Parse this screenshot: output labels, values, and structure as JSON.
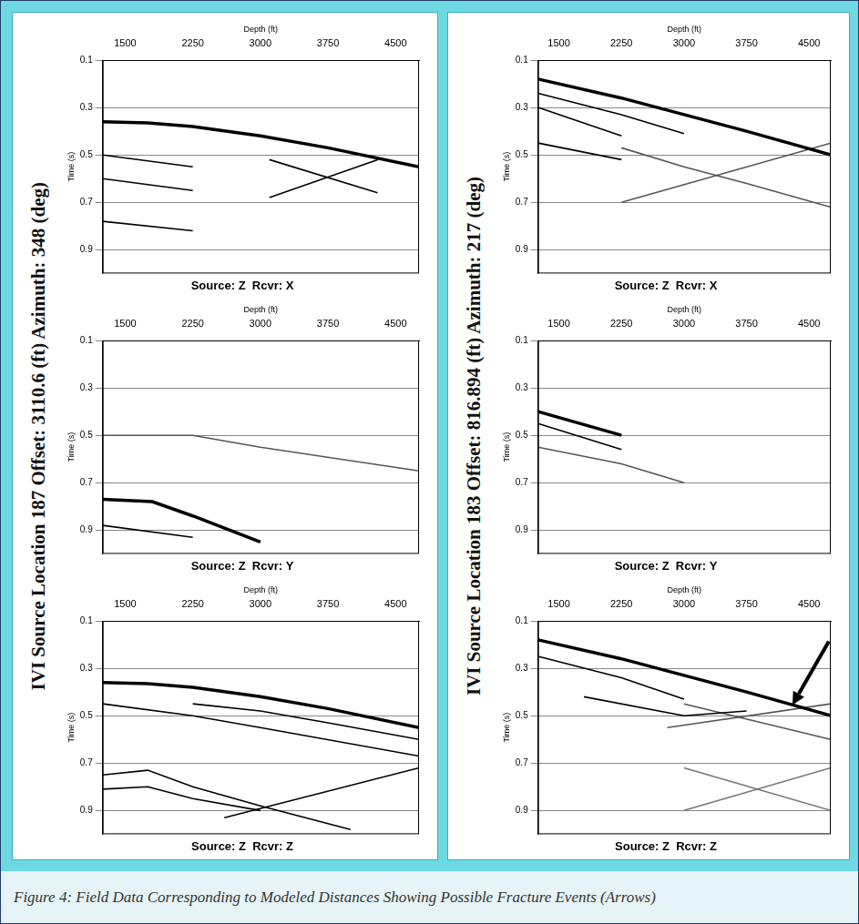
{
  "caption": "Figure 4: Field Data Corresponding to Modeled Distances Showing Possible Fracture Events (Arrows)",
  "panel_titles": [
    "IVI Source Location 187 Offset: 3110.6 (ft) Azimuth: 348 (deg)",
    "IVI Source Location 183 Offset: 816.894 (ft) Azimuth: 217 (deg)"
  ],
  "chart_data": [
    {
      "type": "line",
      "title": "Source: Z  Rcvr: X",
      "x_label": "Depth (ft)",
      "y_label": "Time (s)",
      "xlim": [
        1250,
        4760
      ],
      "xticks": [
        1500,
        2250,
        3000,
        3750,
        4500
      ],
      "ylim": [
        0.1,
        1.0
      ],
      "yticks": [
        0.1,
        0.3,
        0.5,
        0.7,
        0.9
      ],
      "grid": "y",
      "series": [
        {
          "color": "#000000",
          "line_style": "solid",
          "x": [
            1250,
            1750,
            2250,
            3000,
            3750,
            4760
          ],
          "values": [
            0.36,
            0.365,
            0.38,
            0.42,
            0.47,
            0.55
          ]
        },
        {
          "color": "#000000",
          "line_style": "solid",
          "x": [
            3100,
            4300
          ],
          "values": [
            0.68,
            0.52
          ]
        },
        {
          "color": "#000000",
          "line_style": "solid",
          "x": [
            3100,
            4300
          ],
          "values": [
            0.52,
            0.66
          ]
        },
        {
          "color": "#000000",
          "line_style": "solid",
          "x": [
            1250,
            2250
          ],
          "values": [
            0.5,
            0.55
          ]
        },
        {
          "color": "#000000",
          "line_style": "solid",
          "x": [
            1250,
            2250
          ],
          "values": [
            0.6,
            0.65
          ]
        },
        {
          "color": "#000000",
          "line_style": "solid",
          "x": [
            1250,
            2250
          ],
          "values": [
            0.78,
            0.82
          ]
        }
      ]
    },
    {
      "type": "line",
      "title": "Source: Z  Rcvr: Y",
      "x_label": "Depth (ft)",
      "y_label": "Time (s)",
      "xlim": [
        1250,
        4760
      ],
      "xticks": [
        1500,
        2250,
        3000,
        3750,
        4500
      ],
      "ylim": [
        0.1,
        1.0
      ],
      "yticks": [
        0.1,
        0.3,
        0.5,
        0.7,
        0.9
      ],
      "grid": "y",
      "series": [
        {
          "color": "#000000",
          "line_style": "solid",
          "x": [
            1250,
            1800,
            2250,
            3000
          ],
          "values": [
            0.77,
            0.78,
            0.84,
            0.95
          ]
        },
        {
          "color": "#555555",
          "line_style": "solid",
          "x": [
            1250,
            2250,
            3000,
            4760
          ],
          "values": [
            0.5,
            0.5,
            0.55,
            0.65
          ]
        },
        {
          "color": "#000000",
          "line_style": "solid",
          "x": [
            1250,
            2250
          ],
          "values": [
            0.88,
            0.93
          ]
        }
      ]
    },
    {
      "type": "line",
      "title": "Source: Z  Rcvr: Z",
      "x_label": "Depth (ft)",
      "y_label": "Time (s)",
      "xlim": [
        1250,
        4760
      ],
      "xticks": [
        1500,
        2250,
        3000,
        3750,
        4500
      ],
      "ylim": [
        0.1,
        1.0
      ],
      "yticks": [
        0.1,
        0.3,
        0.5,
        0.7,
        0.9
      ],
      "grid": "y",
      "series": [
        {
          "color": "#000000",
          "line_style": "solid",
          "x": [
            1250,
            1750,
            2250,
            3000,
            3750,
            4760
          ],
          "values": [
            0.36,
            0.365,
            0.38,
            0.42,
            0.47,
            0.55
          ]
        },
        {
          "color": "#000000",
          "line_style": "solid",
          "x": [
            2250,
            3000,
            3750,
            4760
          ],
          "values": [
            0.45,
            0.48,
            0.53,
            0.6
          ]
        },
        {
          "color": "#000000",
          "line_style": "solid",
          "x": [
            1250,
            2250,
            3000,
            4760
          ],
          "values": [
            0.45,
            0.5,
            0.55,
            0.67
          ]
        },
        {
          "color": "#000000",
          "line_style": "solid",
          "x": [
            1250,
            1750,
            2250,
            3000,
            4000
          ],
          "values": [
            0.75,
            0.73,
            0.8,
            0.88,
            0.98
          ]
        },
        {
          "color": "#000000",
          "line_style": "solid",
          "x": [
            1250,
            1750,
            2250,
            3000
          ],
          "values": [
            0.81,
            0.8,
            0.85,
            0.9
          ]
        },
        {
          "color": "#000000",
          "line_style": "solid",
          "x": [
            2600,
            4760
          ],
          "values": [
            0.93,
            0.72
          ]
        }
      ]
    },
    {
      "type": "line",
      "title": "Source: Z  Rcvr: X",
      "x_label": "Depth (ft)",
      "y_label": "Time (s)",
      "xlim": [
        1250,
        4760
      ],
      "xticks": [
        1500,
        2250,
        3000,
        3750,
        4500
      ],
      "ylim": [
        0.1,
        1.0
      ],
      "yticks": [
        0.1,
        0.3,
        0.5,
        0.7,
        0.9
      ],
      "grid": "y",
      "series": [
        {
          "color": "#000000",
          "line_style": "solid",
          "x": [
            1250,
            2250,
            3000,
            3750,
            4760
          ],
          "values": [
            0.18,
            0.26,
            0.33,
            0.4,
            0.5
          ]
        },
        {
          "color": "#000000",
          "line_style": "solid",
          "x": [
            1250,
            2250,
            3000
          ],
          "values": [
            0.24,
            0.33,
            0.41
          ]
        },
        {
          "color": "#000000",
          "line_style": "solid",
          "x": [
            1250,
            2250
          ],
          "values": [
            0.3,
            0.42
          ]
        },
        {
          "color": "#555555",
          "line_style": "solid",
          "x": [
            2250,
            3000,
            3750,
            4760
          ],
          "values": [
            0.47,
            0.55,
            0.62,
            0.72
          ]
        },
        {
          "color": "#555555",
          "line_style": "solid",
          "x": [
            2250,
            4760
          ],
          "values": [
            0.7,
            0.45
          ]
        },
        {
          "color": "#000000",
          "line_style": "solid",
          "x": [
            1250,
            2250
          ],
          "values": [
            0.45,
            0.52
          ]
        }
      ]
    },
    {
      "type": "line",
      "title": "Source: Z  Rcvr: Y",
      "x_label": "Depth (ft)",
      "y_label": "Time (s)",
      "xlim": [
        1250,
        4760
      ],
      "xticks": [
        1500,
        2250,
        3000,
        3750,
        4500
      ],
      "ylim": [
        0.1,
        1.0
      ],
      "yticks": [
        0.1,
        0.3,
        0.5,
        0.7,
        0.9
      ],
      "grid": "y",
      "series": [
        {
          "color": "#000000",
          "line_style": "solid",
          "x": [
            1250,
            2250
          ],
          "values": [
            0.4,
            0.5
          ]
        },
        {
          "color": "#000000",
          "line_style": "solid",
          "x": [
            1250,
            2250
          ],
          "values": [
            0.45,
            0.56
          ]
        },
        {
          "color": "#555555",
          "line_style": "solid",
          "x": [
            1250,
            2250,
            3000
          ],
          "values": [
            0.55,
            0.62,
            0.7
          ]
        }
      ]
    },
    {
      "type": "line",
      "title": "Source: Z  Rcvr: Z",
      "x_label": "Depth (ft)",
      "y_label": "Time (s)",
      "xlim": [
        1250,
        4760
      ],
      "xticks": [
        1500,
        2250,
        3000,
        3750,
        4500
      ],
      "ylim": [
        0.1,
        1.0
      ],
      "yticks": [
        0.1,
        0.3,
        0.5,
        0.7,
        0.9
      ],
      "grid": "y",
      "arrow": {
        "x": 4300,
        "y": 0.455
      },
      "series": [
        {
          "color": "#000000",
          "line_style": "solid",
          "x": [
            1250,
            2250,
            3000,
            3750,
            4760
          ],
          "values": [
            0.18,
            0.26,
            0.33,
            0.4,
            0.5
          ]
        },
        {
          "color": "#000000",
          "line_style": "solid",
          "x": [
            1250,
            2250,
            3000
          ],
          "values": [
            0.25,
            0.34,
            0.43
          ]
        },
        {
          "color": "#000000",
          "line_style": "solid",
          "x": [
            1800,
            3000,
            3750
          ],
          "values": [
            0.42,
            0.5,
            0.48
          ]
        },
        {
          "color": "#555555",
          "line_style": "solid",
          "x": [
            3000,
            4760
          ],
          "values": [
            0.45,
            0.6
          ]
        },
        {
          "color": "#555555",
          "line_style": "solid",
          "x": [
            2800,
            4760
          ],
          "values": [
            0.55,
            0.45
          ]
        },
        {
          "color": "#777777",
          "line_style": "solid",
          "x": [
            3000,
            4760
          ],
          "values": [
            0.72,
            0.9
          ]
        },
        {
          "color": "#777777",
          "line_style": "solid",
          "x": [
            3000,
            4760
          ],
          "values": [
            0.9,
            0.72
          ]
        }
      ]
    }
  ]
}
